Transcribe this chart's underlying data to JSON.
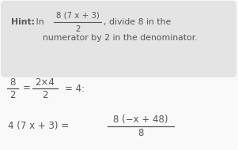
{
  "bg_color": "#f0f0f0",
  "box_color": "#e4e4e4",
  "text_color": "#555555",
  "white_bg": "#f9f9f9",
  "hint_bold": "Hint:",
  "hint_in": " In ",
  "hint_rest": ", divide 8 in the",
  "hint_line2": "numerator by 2 in the denominator.",
  "frac_hint_num": "8 (7 x + 3)",
  "frac_hint_denom": "2",
  "math1_n1": "8",
  "math1_d1": "2",
  "math1_n2": "2×4",
  "math1_d2": "2",
  "math1_end": "= 4:",
  "math2_left": "4 (7 x + 3) =",
  "math2_num": "8 (−x + 48)",
  "math2_denom": "8"
}
